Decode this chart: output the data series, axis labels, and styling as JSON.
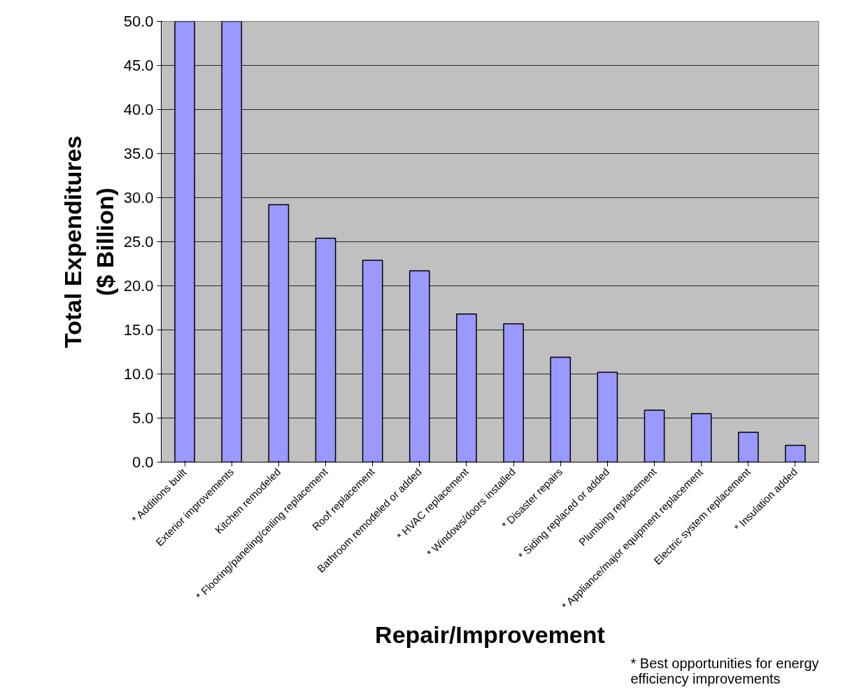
{
  "chart_data": {
    "type": "bar",
    "xlabel": "Repair/Improvement",
    "ylabel": "Total Expenditures\n($ Billion)",
    "categories": [
      "* Additions built",
      "Exterior improvements",
      "Kitchen remodeled",
      "* Flooring/paneling/ceiling replacement",
      "Roof replacement",
      "Bathroom remodeled or added",
      "* HVAC replacement",
      "* Windows/doors installed",
      "* Disaster repairs",
      "* Siding replaced or added",
      "Plumbing replacement",
      "* Appliance/major equipment replacement",
      "Electric system replacement",
      "* Insulation added"
    ],
    "series": [
      {
        "color": "#9999ff",
        "values": [
          50.0,
          50.0,
          29.2,
          25.4,
          22.9,
          21.7,
          16.8,
          15.7,
          11.9,
          10.2,
          5.9,
          5.5,
          3.4,
          1.9
        ]
      }
    ],
    "ylim": [
      0,
      50
    ],
    "yticks": [
      {
        "value": 0,
        "label": "0.0"
      },
      {
        "value": 5,
        "label": "5.0"
      },
      {
        "value": 10,
        "label": "10.0"
      },
      {
        "value": 15,
        "label": "15.0"
      },
      {
        "value": 20,
        "label": "20.0"
      },
      {
        "value": 25,
        "label": "25.0"
      },
      {
        "value": 30,
        "label": "30.0"
      },
      {
        "value": 35,
        "label": "35.0"
      },
      {
        "value": 40,
        "label": "40.0"
      },
      {
        "value": 45,
        "label": "45.0"
      },
      {
        "value": 50,
        "label": "50.0"
      }
    ],
    "grid": "y",
    "annotations": [
      "* Best opportunities for energy\nefficiency improvements"
    ]
  }
}
